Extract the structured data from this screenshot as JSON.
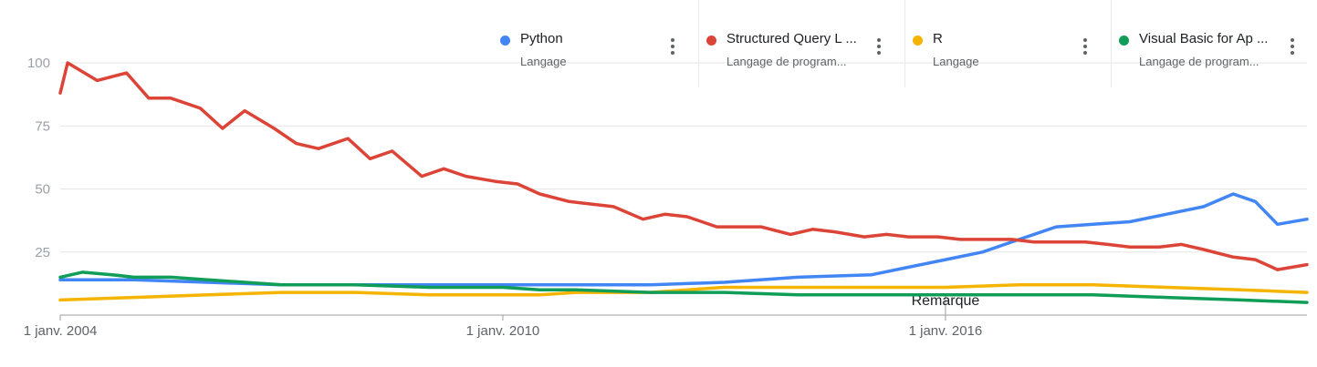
{
  "legend": [
    {
      "name": "Python",
      "subtitle": "Langage",
      "color": "#4285f4",
      "menu_icon": "more-vert-icon"
    },
    {
      "name": "Structured Query L ...",
      "subtitle": "Langage de program...",
      "color": "#db4437",
      "menu_icon": "more-vert-icon"
    },
    {
      "name": "R",
      "subtitle": "Langage",
      "color": "#f4b400",
      "menu_icon": "more-vert-icon"
    },
    {
      "name": "Visual Basic for Ap ...",
      "subtitle": "Langage de program...",
      "color": "#0f9d58",
      "menu_icon": "more-vert-icon"
    }
  ],
  "chart_data": {
    "type": "line",
    "ylim": [
      0,
      100
    ],
    "yticks": [
      25,
      50,
      75,
      100
    ],
    "xlim": [
      2004.0,
      2020.9
    ],
    "xticks": [
      {
        "x": 2004,
        "label": "1 janv. 2004"
      },
      {
        "x": 2010,
        "label": "1 janv. 2010"
      },
      {
        "x": 2016,
        "label": "1 janv. 2016"
      }
    ],
    "annotation": {
      "x": 2016,
      "label": "Remarque"
    },
    "grid": true,
    "series": [
      {
        "name": "Python",
        "color": "#4285f4",
        "points": [
          [
            2004,
            14
          ],
          [
            2005,
            14
          ],
          [
            2006,
            13
          ],
          [
            2007,
            12
          ],
          [
            2008,
            12
          ],
          [
            2009,
            12
          ],
          [
            2010,
            12
          ],
          [
            2011,
            12
          ],
          [
            2012,
            12
          ],
          [
            2013,
            13
          ],
          [
            2014,
            15
          ],
          [
            2015,
            16
          ],
          [
            2015.5,
            19
          ],
          [
            2016,
            22
          ],
          [
            2016.5,
            25
          ],
          [
            2017,
            30
          ],
          [
            2017.5,
            35
          ],
          [
            2018,
            36
          ],
          [
            2018.5,
            37
          ],
          [
            2019,
            40
          ],
          [
            2019.5,
            43
          ],
          [
            2019.9,
            48
          ],
          [
            2020.2,
            45
          ],
          [
            2020.5,
            36
          ],
          [
            2020.9,
            38
          ]
        ]
      },
      {
        "name": "Structured Query L ...",
        "color": "#db4437",
        "points": [
          [
            2004,
            88
          ],
          [
            2004.1,
            100
          ],
          [
            2004.5,
            93
          ],
          [
            2004.9,
            96
          ],
          [
            2005.2,
            86
          ],
          [
            2005.5,
            86
          ],
          [
            2005.9,
            82
          ],
          [
            2006.2,
            74
          ],
          [
            2006.5,
            81
          ],
          [
            2006.9,
            74
          ],
          [
            2007.2,
            68
          ],
          [
            2007.5,
            66
          ],
          [
            2007.9,
            70
          ],
          [
            2008.2,
            62
          ],
          [
            2008.5,
            65
          ],
          [
            2008.9,
            55
          ],
          [
            2009.2,
            58
          ],
          [
            2009.5,
            55
          ],
          [
            2009.9,
            53
          ],
          [
            2010.2,
            52
          ],
          [
            2010.5,
            48
          ],
          [
            2010.9,
            45
          ],
          [
            2011.2,
            44
          ],
          [
            2011.5,
            43
          ],
          [
            2011.9,
            38
          ],
          [
            2012.2,
            40
          ],
          [
            2012.5,
            39
          ],
          [
            2012.9,
            35
          ],
          [
            2013.2,
            35
          ],
          [
            2013.5,
            35
          ],
          [
            2013.9,
            32
          ],
          [
            2014.2,
            34
          ],
          [
            2014.5,
            33
          ],
          [
            2014.9,
            31
          ],
          [
            2015.2,
            32
          ],
          [
            2015.5,
            31
          ],
          [
            2015.9,
            31
          ],
          [
            2016.2,
            30
          ],
          [
            2016.5,
            30
          ],
          [
            2016.9,
            30
          ],
          [
            2017.2,
            29
          ],
          [
            2017.5,
            29
          ],
          [
            2017.9,
            29
          ],
          [
            2018.2,
            28
          ],
          [
            2018.5,
            27
          ],
          [
            2018.9,
            27
          ],
          [
            2019.2,
            28
          ],
          [
            2019.5,
            26
          ],
          [
            2019.9,
            23
          ],
          [
            2020.2,
            22
          ],
          [
            2020.5,
            18
          ],
          [
            2020.9,
            20
          ]
        ]
      },
      {
        "name": "R",
        "color": "#f4b400",
        "points": [
          [
            2004,
            6
          ],
          [
            2005,
            7
          ],
          [
            2006,
            8
          ],
          [
            2007,
            9
          ],
          [
            2008,
            9
          ],
          [
            2009,
            8
          ],
          [
            2010,
            8
          ],
          [
            2010.5,
            8
          ],
          [
            2011,
            9
          ],
          [
            2012,
            9
          ],
          [
            2013,
            11
          ],
          [
            2014,
            11
          ],
          [
            2015,
            11
          ],
          [
            2016,
            11
          ],
          [
            2017,
            12
          ],
          [
            2018,
            12
          ],
          [
            2019,
            11
          ],
          [
            2020,
            10
          ],
          [
            2020.9,
            9
          ]
        ]
      },
      {
        "name": "Visual Basic for Ap ...",
        "color": "#0f9d58",
        "points": [
          [
            2004,
            15
          ],
          [
            2004.3,
            17
          ],
          [
            2004.7,
            16
          ],
          [
            2005,
            15
          ],
          [
            2005.5,
            15
          ],
          [
            2006,
            14
          ],
          [
            2007,
            12
          ],
          [
            2008,
            12
          ],
          [
            2009,
            11
          ],
          [
            2010,
            11
          ],
          [
            2010.5,
            10
          ],
          [
            2011,
            10
          ],
          [
            2012,
            9
          ],
          [
            2013,
            9
          ],
          [
            2014,
            8
          ],
          [
            2015,
            8
          ],
          [
            2016,
            8
          ],
          [
            2017,
            8
          ],
          [
            2018,
            8
          ],
          [
            2019,
            7
          ],
          [
            2020,
            6
          ],
          [
            2020.9,
            5
          ]
        ]
      }
    ]
  }
}
